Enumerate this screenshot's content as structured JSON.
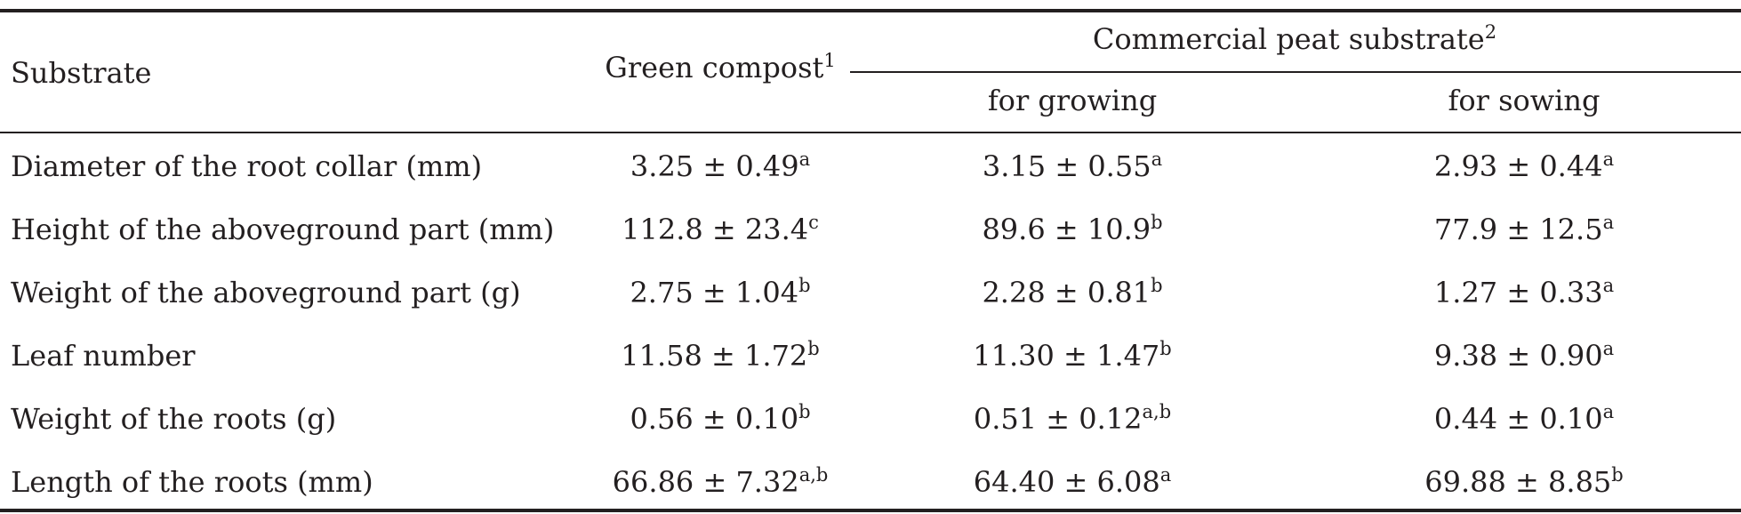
{
  "table": {
    "header": {
      "substrate_label": "Substrate",
      "green_compost": {
        "text": "Green compost",
        "sup": "1"
      },
      "commercial_peat": {
        "text": "Commercial peat substrate",
        "sup": "2"
      },
      "for_growing": "for growing",
      "for_sowing": "for sowing"
    },
    "rows": [
      {
        "label": "Diameter of the root collar (mm)",
        "cells": [
          {
            "value": "3.25 ± 0.49",
            "sup": "a"
          },
          {
            "value": "3.15 ± 0.55",
            "sup": "a"
          },
          {
            "value": "2.93 ± 0.44",
            "sup": "a"
          }
        ]
      },
      {
        "label": "Height of the aboveground part (mm)",
        "cells": [
          {
            "value": "112.8 ± 23.4",
            "sup": "c"
          },
          {
            "value": "89.6 ± 10.9",
            "sup": "b"
          },
          {
            "value": "77.9 ± 12.5",
            "sup": "a"
          }
        ]
      },
      {
        "label": "Weight of the aboveground part (g)",
        "cells": [
          {
            "value": "2.75 ± 1.04",
            "sup": "b"
          },
          {
            "value": "2.28 ± 0.81",
            "sup": "b"
          },
          {
            "value": "1.27 ± 0.33",
            "sup": "a"
          }
        ]
      },
      {
        "label": "Leaf number",
        "cells": [
          {
            "value": "11.58 ± 1.72",
            "sup": "b"
          },
          {
            "value": "11.30 ± 1.47",
            "sup": "b"
          },
          {
            "value": "9.38 ± 0.90",
            "sup": "a"
          }
        ]
      },
      {
        "label": "Weight of the roots (g)",
        "cells": [
          {
            "value": "0.56 ± 0.10",
            "sup": "b"
          },
          {
            "value": "0.51 ± 0.12",
            "sup": "a,b"
          },
          {
            "value": "0.44 ± 0.10",
            "sup": "a"
          }
        ]
      },
      {
        "label": "Length of the roots (mm)",
        "cells": [
          {
            "value": "66.86 ± 7.32",
            "sup": "a,b"
          },
          {
            "value": "64.40 ± 6.08",
            "sup": "a"
          },
          {
            "value": "69.88 ± 8.85",
            "sup": "b"
          }
        ]
      }
    ]
  }
}
